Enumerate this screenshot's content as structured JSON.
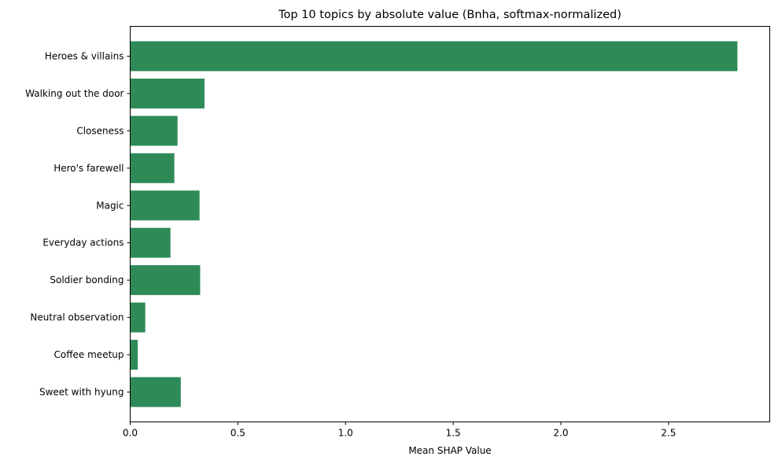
{
  "chart_data": {
    "type": "bar",
    "orientation": "horizontal",
    "title": "Top 10 topics by absolute value (Bnha, softmax-normalized)",
    "xlabel": "Mean SHAP Value",
    "ylabel": "",
    "categories": [
      "Heroes & villains",
      "Walking out the door",
      "Closeness",
      "Hero's farewell",
      "Magic",
      "Everyday actions",
      "Soldier bonding",
      "Neutral observation",
      "Coffee meetup",
      "Sweet with hyung"
    ],
    "values": [
      2.82,
      0.345,
      0.22,
      0.205,
      0.322,
      0.187,
      0.325,
      0.07,
      0.035,
      0.235
    ],
    "xlim": [
      0,
      2.97
    ],
    "xticks": [
      0.0,
      0.5,
      1.0,
      1.5,
      2.0,
      2.5
    ],
    "xtick_labels": [
      "0.0",
      "0.5",
      "1.0",
      "1.5",
      "2.0",
      "2.5"
    ],
    "bar_color": "#2e8b57",
    "grid": false,
    "legend": "none"
  }
}
